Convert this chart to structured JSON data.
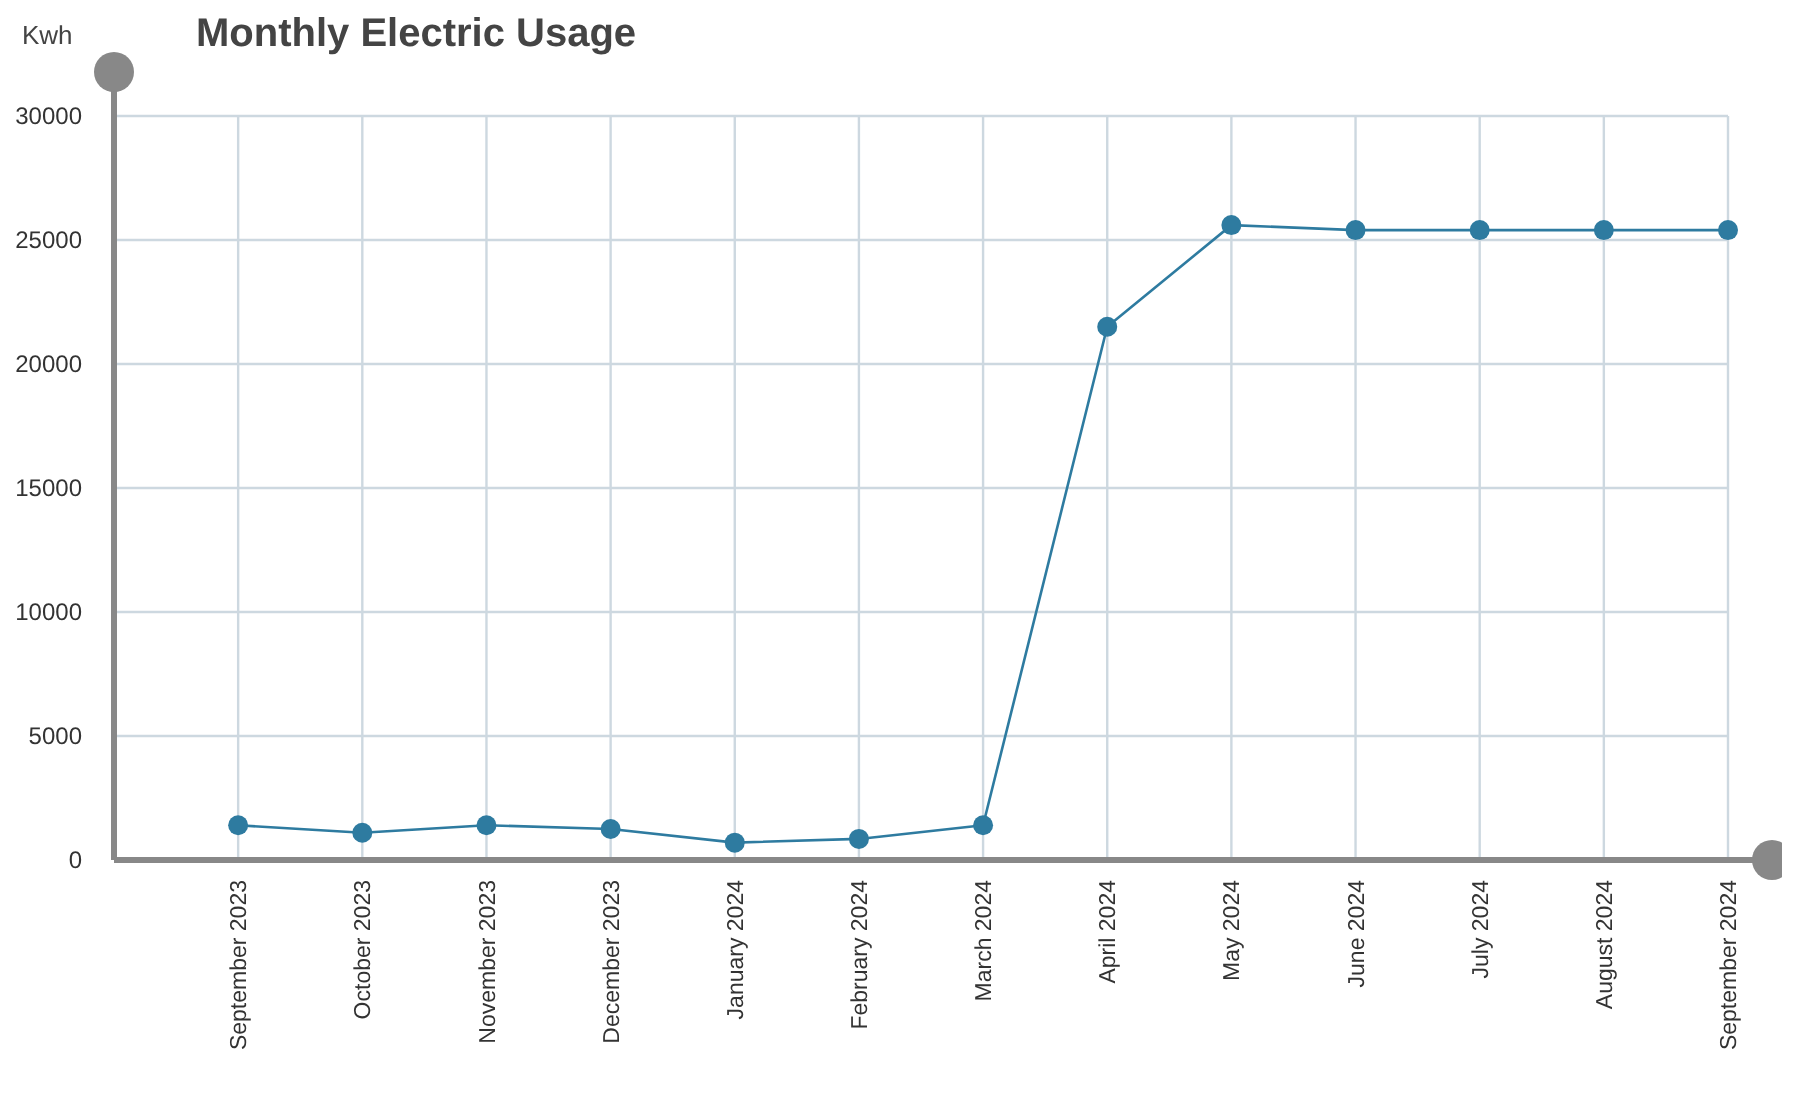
{
  "chart_data": {
    "type": "line",
    "title": "Monthly Electric Usage",
    "ylabel": "Kwh",
    "categories": [
      "September 2023",
      "October 2023",
      "November 2023",
      "December 2023",
      "January 2024",
      "February 2024",
      "March 2024",
      "April 2024",
      "May 2024",
      "June 2024",
      "July 2024",
      "August 2024",
      "September 2024"
    ],
    "series": [
      {
        "color": "#2e7ba0",
        "values": [
          1400,
          1100,
          1400,
          1250,
          700,
          850,
          1400,
          21500,
          25600,
          25400,
          25400,
          25400,
          25400
        ]
      }
    ],
    "ylim": [
      0,
      30000
    ],
    "yticks": [
      0,
      5000,
      10000,
      15000,
      20000,
      25000,
      30000
    ],
    "grid": true,
    "marker": "circle",
    "line_style": "solid"
  }
}
